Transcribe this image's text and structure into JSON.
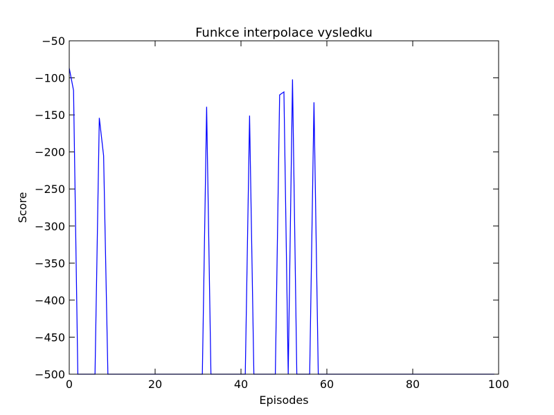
{
  "chart_data": {
    "type": "line",
    "title": "Funkce interpolace vysledku",
    "xlabel": "Episodes",
    "ylabel": "Score",
    "xlim": [
      0,
      100
    ],
    "ylim": [
      -500,
      -50
    ],
    "xticks": [
      0,
      20,
      40,
      60,
      80,
      100
    ],
    "yticks": [
      -50,
      -100,
      -150,
      -200,
      -250,
      -300,
      -350,
      -400,
      -450,
      -500
    ],
    "xtick_labels": [
      "0",
      "20",
      "40",
      "60",
      "80",
      "100"
    ],
    "ytick_labels": [
      "−50",
      "−100",
      "−150",
      "−200",
      "−250",
      "−300",
      "−350",
      "−400",
      "−450",
      "−500"
    ],
    "grid": false,
    "series": [
      {
        "color": "#0000ff",
        "x": [
          0,
          1,
          2,
          3,
          4,
          5,
          6,
          7,
          8,
          9,
          10,
          11,
          12,
          13,
          14,
          15,
          16,
          17,
          18,
          19,
          20,
          21,
          22,
          23,
          24,
          25,
          26,
          27,
          28,
          29,
          30,
          31,
          32,
          33,
          34,
          35,
          36,
          37,
          38,
          39,
          40,
          41,
          42,
          43,
          44,
          45,
          46,
          47,
          48,
          49,
          50,
          51,
          52,
          53,
          54,
          55,
          56,
          57,
          58,
          59,
          60,
          61,
          62,
          63,
          64,
          65,
          66,
          67,
          68,
          69,
          70,
          71,
          72,
          73,
          74,
          75,
          76,
          77,
          78,
          79,
          80,
          81,
          82,
          83,
          84,
          85,
          86,
          87,
          88,
          89,
          90,
          91,
          92,
          93,
          94,
          95,
          96,
          97,
          98,
          99
        ],
        "y": [
          -87,
          -117,
          -500,
          -500,
          -500,
          -500,
          -500,
          -154,
          -205,
          -500,
          -500,
          -500,
          -500,
          -500,
          -500,
          -500,
          -500,
          -500,
          -500,
          -500,
          -500,
          -500,
          -500,
          -500,
          -500,
          -500,
          -500,
          -500,
          -500,
          -500,
          -500,
          -500,
          -139,
          -500,
          -500,
          -500,
          -500,
          -500,
          -500,
          -500,
          -500,
          -500,
          -151,
          -500,
          -500,
          -500,
          -500,
          -500,
          -500,
          -123,
          -119,
          -500,
          -102,
          -500,
          -500,
          -500,
          -500,
          -133,
          -500,
          -500,
          -500,
          -500,
          -500,
          -500,
          -500,
          -500,
          -500,
          -500,
          -500,
          -500,
          -500,
          -500,
          -500,
          -500,
          -500,
          -500,
          -500,
          -500,
          -500,
          -500,
          -500,
          -500,
          -500,
          -500,
          -500,
          -500,
          -500,
          -500,
          -500,
          -500,
          -500,
          -500,
          -500,
          -500,
          -500,
          -500,
          -500,
          -500,
          -500,
          -500
        ]
      }
    ]
  }
}
